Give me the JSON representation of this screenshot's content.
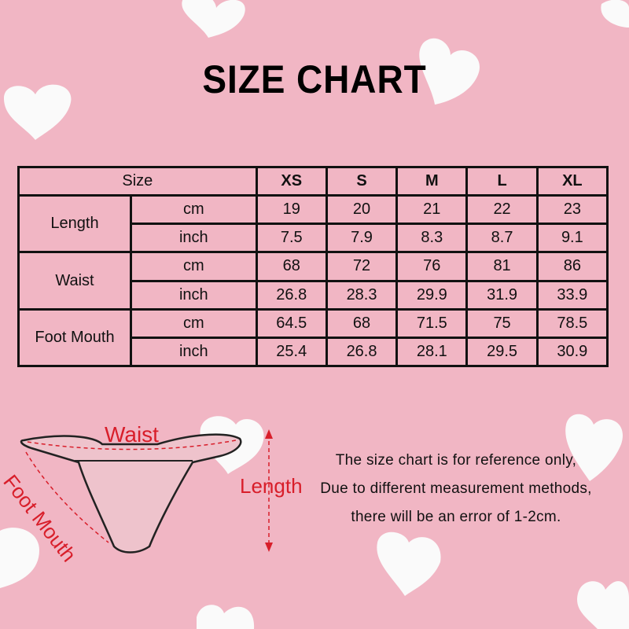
{
  "title": "SIZE CHART",
  "table": {
    "size_header": "Size",
    "sizes": [
      "XS",
      "S",
      "M",
      "L",
      "XL"
    ],
    "rows": [
      {
        "measure": "Length",
        "cm": [
          "19",
          "20",
          "21",
          "22",
          "23"
        ],
        "inch": [
          "7.5",
          "7.9",
          "8.3",
          "8.7",
          "9.1"
        ]
      },
      {
        "measure": "Waist",
        "cm": [
          "68",
          "72",
          "76",
          "81",
          "86"
        ],
        "inch": [
          "26.8",
          "28.3",
          "29.9",
          "31.9",
          "33.9"
        ]
      },
      {
        "measure": "Foot Mouth",
        "cm": [
          "64.5",
          "68",
          "71.5",
          "75",
          "78.5"
        ],
        "inch": [
          "25.4",
          "26.8",
          "28.1",
          "29.5",
          "30.9"
        ]
      }
    ],
    "unit_cm": "cm",
    "unit_inch": "inch"
  },
  "diagram": {
    "waist": "Waist",
    "foot_mouth": "Foot Mouth",
    "length": "Length",
    "accent_color": "#d81e2a"
  },
  "note": [
    "The size chart is for reference only,",
    "Due to different measurement methods,",
    "there will be an error of 1-2cm."
  ]
}
